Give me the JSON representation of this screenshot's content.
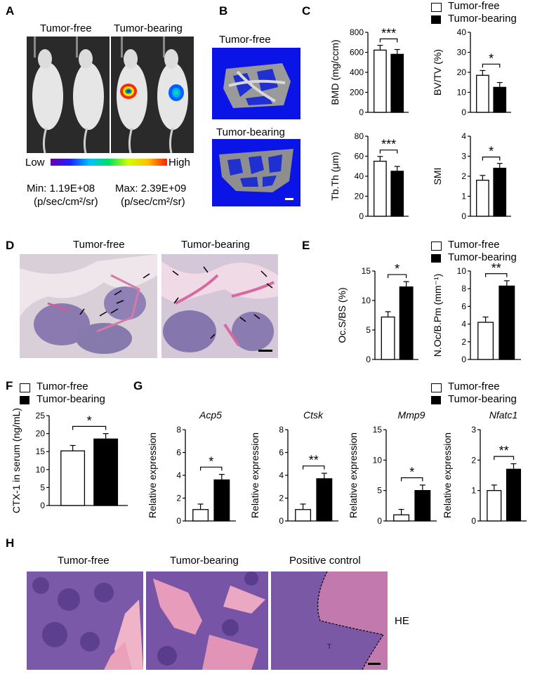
{
  "panel_letters": {
    "a": "A",
    "b": "B",
    "c": "C",
    "d": "D",
    "e": "E",
    "f": "F",
    "g": "G",
    "h": "H"
  },
  "legend": {
    "free": "Tumor-free",
    "bearing": "Tumor-bearing"
  },
  "panelA": {
    "free_label": "Tumor-free",
    "bearing_label": "Tumor-bearing",
    "scale_low": "Low",
    "scale_high": "High",
    "min_label": "Min: 1.19E+08",
    "max_label": "Max: 2.39E+09",
    "unit_label": "(p/sec/cm²/sr)"
  },
  "panelB": {
    "free_label": "Tumor-free",
    "bearing_label": "Tumor-bearing"
  },
  "panelD": {
    "free_label": "Tumor-free",
    "bearing_label": "Tumor-bearing"
  },
  "panelH": {
    "free_label": "Tumor-free",
    "bearing_label": "Tumor-bearing",
    "positive_label": "Positive control",
    "he_label": "HE",
    "t_label": "T"
  },
  "colors": {
    "free_bar": "#ffffff",
    "bearing_bar": "#000000",
    "photo_bg_a": "#2a2a2a",
    "microct_bg": "#0a14e6",
    "he_purple": "#7a5aa8",
    "he_pink": "#e8a6c0"
  },
  "chart_data": [
    {
      "id": "C1",
      "type": "bar",
      "categories": [
        "Tumor-free",
        "Tumor-bearing"
      ],
      "values": [
        622,
        580
      ],
      "ylabel": "BMD (mg/ccm)",
      "ylim": [
        0,
        800
      ],
      "yticks": [
        "0",
        "200",
        "400",
        "600",
        "800"
      ],
      "significance": "***"
    },
    {
      "id": "C2",
      "type": "bar",
      "categories": [
        "Tumor-free",
        "Tumor-bearing"
      ],
      "values": [
        18.5,
        12.5
      ],
      "ylabel": "BV/TV (%)",
      "ylim": [
        0,
        40
      ],
      "yticks": [
        "0",
        "10",
        "20",
        "30",
        "40"
      ],
      "significance": "*"
    },
    {
      "id": "C3",
      "type": "bar",
      "categories": [
        "Tumor-free",
        "Tumor-bearing"
      ],
      "values": [
        55,
        45
      ],
      "ylabel": "Tb.Th (μm)",
      "ylim": [
        0,
        80
      ],
      "yticks": [
        "0",
        "20",
        "40",
        "60",
        "80"
      ],
      "significance": "***"
    },
    {
      "id": "C4",
      "type": "bar",
      "categories": [
        "Tumor-free",
        "Tumor-bearing"
      ],
      "values": [
        1.8,
        2.4
      ],
      "ylabel": "SMI",
      "ylim": [
        0,
        4
      ],
      "yticks": [
        "0",
        "1",
        "2",
        "3",
        "4"
      ],
      "significance": "*"
    },
    {
      "id": "E1",
      "type": "bar",
      "categories": [
        "Tumor-free",
        "Tumor-bearing"
      ],
      "values": [
        7.2,
        12.3
      ],
      "ylabel": "Oc.S/BS (%)",
      "ylim": [
        0,
        15
      ],
      "yticks": [
        "0",
        "5",
        "10",
        "15"
      ],
      "significance": "*"
    },
    {
      "id": "E2",
      "type": "bar",
      "categories": [
        "Tumor-free",
        "Tumor-bearing"
      ],
      "values": [
        4.2,
        8.3
      ],
      "ylabel": "N.Oc/B.Pm (mm⁻¹)",
      "ylim": [
        0,
        10
      ],
      "yticks": [
        "0",
        "2",
        "4",
        "6",
        "8",
        "10"
      ],
      "significance": "**"
    },
    {
      "id": "F1",
      "type": "bar",
      "categories": [
        "Tumor-free",
        "Tumor-bearing"
      ],
      "values": [
        15.2,
        18.5
      ],
      "ylabel": "CTX-1 in serum (ng/mL)",
      "ylim": [
        0,
        25
      ],
      "yticks": [
        "0",
        "5",
        "10",
        "15",
        "20",
        "25"
      ],
      "significance": "*"
    },
    {
      "id": "G1",
      "type": "bar",
      "title": "Acp5",
      "categories": [
        "Tumor-free",
        "Tumor-bearing"
      ],
      "values": [
        1.0,
        3.6
      ],
      "ylabel": "Relative expression",
      "ylim": [
        0,
        8
      ],
      "yticks": [
        "0",
        "2",
        "4",
        "6",
        "8"
      ],
      "significance": "*"
    },
    {
      "id": "G2",
      "type": "bar",
      "title": "Ctsk",
      "categories": [
        "Tumor-free",
        "Tumor-bearing"
      ],
      "values": [
        1.0,
        3.7
      ],
      "ylabel": "Relative expression",
      "ylim": [
        0,
        8
      ],
      "yticks": [
        "0",
        "2",
        "4",
        "6",
        "8"
      ],
      "significance": "**"
    },
    {
      "id": "G3",
      "type": "bar",
      "title": "Mmp9",
      "categories": [
        "Tumor-free",
        "Tumor-bearing"
      ],
      "values": [
        1.0,
        5.0
      ],
      "ylabel": "Relative expression",
      "ylim": [
        0,
        15
      ],
      "yticks": [
        "0",
        "5",
        "10",
        "15"
      ],
      "significance": "*"
    },
    {
      "id": "G4",
      "type": "bar",
      "title": "Nfatc1",
      "categories": [
        "Tumor-free",
        "Tumor-bearing"
      ],
      "values": [
        1.0,
        1.7
      ],
      "ylabel": "Relative expression",
      "ylim": [
        0,
        3
      ],
      "yticks": [
        "0",
        "1",
        "2",
        "3"
      ],
      "significance": "**"
    }
  ]
}
